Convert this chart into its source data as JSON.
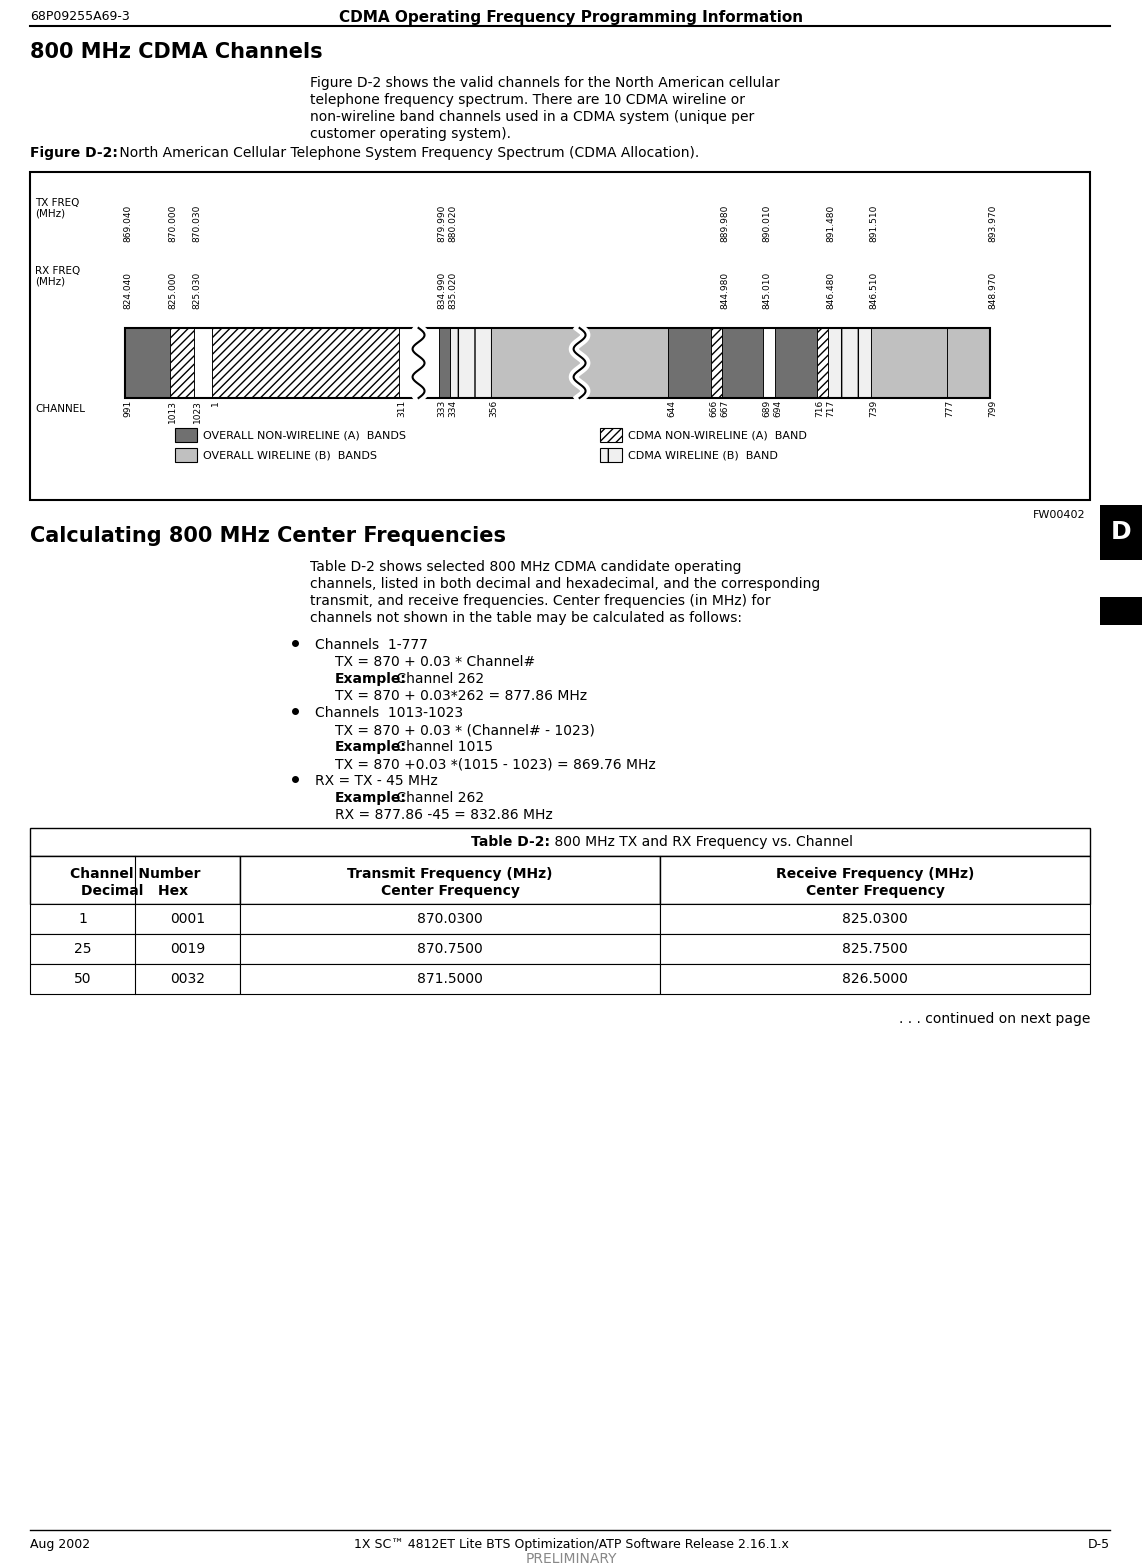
{
  "header_left": "68P09255A69-3",
  "header_center": "CDMA Operating Frequency Programming Information",
  "footer_left": "Aug 2002",
  "footer_center": "1X SC™ 4812ET Lite BTS Optimization/ATP Software Release 2.16.1.x",
  "footer_right": "D-5",
  "footer_sub": "PRELIMINARY",
  "section1_title": "800 MHz CDMA Channels",
  "section1_body_lines": [
    "Figure D-2 shows the valid channels for the North American cellular",
    "telephone frequency spectrum. There are 10 CDMA wireline or",
    "non-wireline band channels used in a CDMA system (unique per",
    "customer operating system)."
  ],
  "fig_label": "Figure D-2:",
  "fig_caption": " North American Cellular Telephone System Frequency Spectrum (CDMA Allocation).",
  "section2_title": "Calculating 800 MHz Center Frequencies",
  "section2_body_lines": [
    "Table D-2 shows selected 800 MHz CDMA candidate operating",
    "channels, listed in both decimal and hexadecimal, and the corresponding",
    "transmit, and receive frequencies. Center frequencies (in MHz) for",
    "channels not shown in the table may be calculated as follows:"
  ],
  "bullet1_head": "Channels  1-777",
  "bullet1_line1": "TX = 870 + 0.03 * Channel#",
  "bullet1_bold": "Example:",
  "bullet1_ex1": " Channel 262",
  "bullet1_ex2": "TX = 870 + 0.03*262 = 877.86 MHz",
  "bullet2_head": "Channels  1013-1023",
  "bullet2_line1": "TX = 870 + 0.03 * (Channel# - 1023)",
  "bullet2_bold": "Example:",
  "bullet2_ex1": " Channel 1015",
  "bullet2_ex2": "TX = 870 +0.03 *(1015 - 1023) = 869.76 MHz",
  "bullet3_head": "RX = TX - 45 MHz",
  "bullet3_bold": "Example:",
  "bullet3_ex1": " Channel 262",
  "bullet3_ex2": "RX = 877.86 -45 = 832.86 MHz",
  "table_title_bold": "Table D-2:",
  "table_title_normal": " 800 MHz TX and RX Frequency vs. Channel",
  "table_col0_line1": "Channel Number",
  "table_col0_line2": "Decimal   Hex",
  "table_col1_line1": "Transmit Frequency (MHz)",
  "table_col1_line2": "Center Frequency",
  "table_col2_line1": "Receive Frequency (MHz)",
  "table_col2_line2": "Center Frequency",
  "table_rows": [
    [
      "1",
      "0001",
      "870.0300",
      "825.0300"
    ],
    [
      "25",
      "0019",
      "870.7500",
      "825.7500"
    ],
    [
      "50",
      "0032",
      "871.5000",
      "826.5000"
    ]
  ],
  "table_continued": ". . . continued on next page",
  "fw_label": "FW00402",
  "legend": [
    {
      "label": "OVERALL NON-WIRELINE (A)  BANDS",
      "fc": "#707070",
      "hatch": null
    },
    {
      "label": "OVERALL WIRELINE (B)  BANDS",
      "fc": "#c0c0c0",
      "hatch": null
    },
    {
      "label": "CDMA NON-WIRELINE (A)  BAND",
      "fc": "#ffffff",
      "hatch": "////"
    },
    {
      "label": "CDMA WIRELINE (B)  BAND",
      "fc": "#f0f0f0",
      "hatch": "||||"
    }
  ],
  "dark_gray": "#707070",
  "light_gray": "#c0c0c0",
  "hatch_gray": "#ffffff",
  "stripe_gray": "#f0f0f0",
  "bg_color": "#ffffff"
}
